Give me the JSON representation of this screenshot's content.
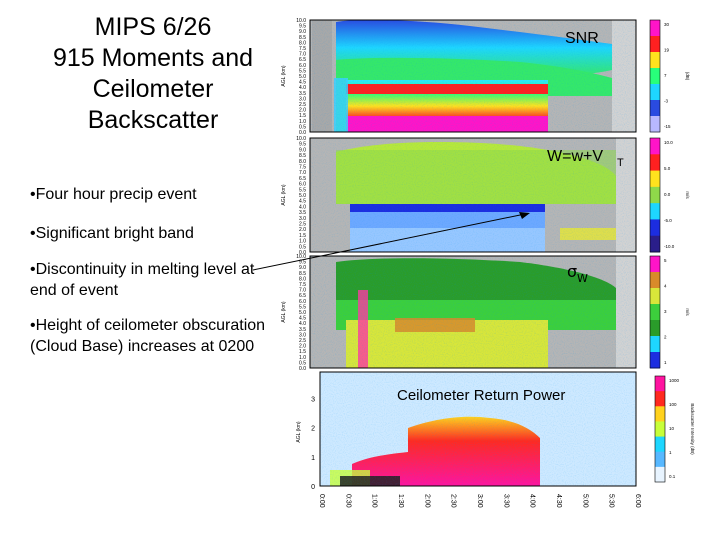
{
  "title": {
    "line1": "MIPS 6/26",
    "line2": "915 Moments and",
    "line3": "Ceilometer",
    "line4": "Backscatter"
  },
  "bullets": [
    "•Four hour precip event",
    "•Significant bright band",
    "•Discontinuity in melting level at end of event",
    "•Height of ceilometer obscuration (Cloud Base) increases at 0200"
  ],
  "panels": [
    {
      "label": "SNR"
    },
    {
      "label": "W=w+V",
      "label_sub": "T"
    },
    {
      "label": "σ",
      "label_sub": "W"
    },
    {
      "label": "Ceilometer Return Power"
    }
  ],
  "axes": {
    "radar_ylabel": "AGL (km)",
    "ceil_ylabel": "AGL (km)",
    "radar_yticks": [
      "0.0",
      "0.5",
      "1.0",
      "1.5",
      "2.0",
      "2.5",
      "3.0",
      "3.5",
      "4.0",
      "4.5",
      "5.0",
      "5.5",
      "6.0",
      "6.5",
      "7.0",
      "7.5",
      "8.0",
      "8.5",
      "9.0",
      "9.5",
      "10.0"
    ],
    "ceil_yticks": [
      "0",
      "1",
      "2",
      "3"
    ],
    "x_ticks": [
      "0:00",
      "0:30",
      "1:00",
      "1:30",
      "2:00",
      "2:30",
      "3:00",
      "3:30",
      "4:00",
      "4:30",
      "5:00",
      "5:30",
      "6:00"
    ],
    "colorbars": [
      {
        "unit": "(dB)",
        "ticks": [
          "30",
          "19",
          "7",
          "-3",
          "-15"
        ]
      },
      {
        "unit": "m/s",
        "ticks": [
          "10.0",
          "5.0",
          "0.0",
          "-5.0",
          "-10.0"
        ]
      },
      {
        "unit": "m/s",
        "ticks": [
          "5",
          "4",
          "3",
          "2",
          "1"
        ]
      },
      {
        "unit": "Backscatter Intensity (dB)",
        "ticks": [
          "1000",
          "100",
          "10",
          "1",
          "0.1"
        ]
      }
    ]
  },
  "colors": {
    "precip_core": "#ff1e1e",
    "bright_band": "#1c2de0",
    "background_gray": "#b8b8b8",
    "ceil_high": "#ff1493"
  }
}
